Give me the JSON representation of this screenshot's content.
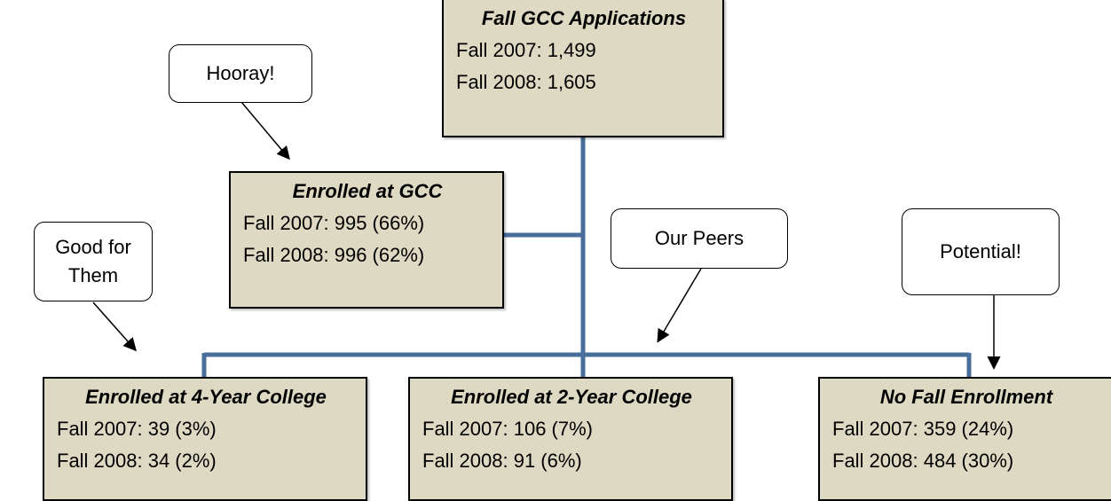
{
  "nodes": [
    {
      "title": "Fall GCC Applications",
      "lines": [
        "Fall 2007: 1,499",
        "Fall 2008: 1,605"
      ]
    },
    {
      "title": "Enrolled at GCC",
      "lines": [
        "Fall 2007: 995 (66%)",
        "Fall 2008: 996 (62%)"
      ]
    },
    {
      "title": "Enrolled at 4-Year College",
      "lines": [
        "Fall 2007: 39 (3%)",
        "Fall 2008: 34 (2%)"
      ]
    },
    {
      "title": "Enrolled at 2-Year College",
      "lines": [
        "Fall 2007: 106 (7%)",
        "Fall 2008: 91 (6%)"
      ]
    },
    {
      "title": "No Fall Enrollment",
      "lines": [
        "Fall 2007: 359 (24%)",
        "Fall 2008: 484 (30%)"
      ]
    }
  ],
  "callouts": [
    {
      "lines": [
        "Hooray!"
      ]
    },
    {
      "lines": [
        "Good for",
        "Them"
      ]
    },
    {
      "lines": [
        "Our Peers"
      ]
    },
    {
      "lines": [
        "Potential!"
      ]
    }
  ]
}
